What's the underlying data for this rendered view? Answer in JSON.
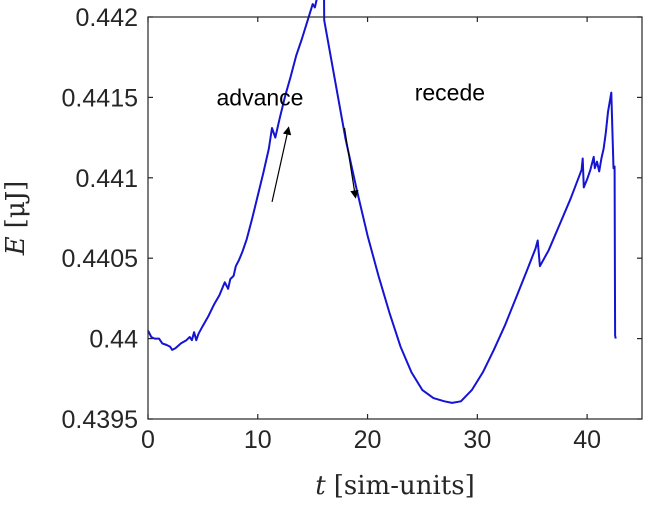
{
  "chart_data": {
    "type": "line",
    "title": "",
    "xlabel_var": "t",
    "xlabel_unit": "[sim-units]",
    "ylabel_var": "E",
    "ylabel_unit": "[μJ]",
    "xlim": [
      0,
      45
    ],
    "ylim": [
      0.4395,
      0.442
    ],
    "xticks": [
      0,
      10,
      20,
      30,
      40
    ],
    "xtick_labels": [
      "0",
      "10",
      "20",
      "30",
      "40"
    ],
    "yticks": [
      0.4395,
      0.44,
      0.4405,
      0.441,
      0.4415,
      0.442
    ],
    "ytick_labels": [
      "0.4395",
      "0.44",
      "0.4405",
      "0.441",
      "0.4415",
      "0.442"
    ],
    "grid": false,
    "line_color": "#1414d2",
    "series": [
      {
        "x": [
          0,
          0.3,
          0.6,
          1.0,
          1.3,
          1.7,
          2.0,
          2.2,
          2.5,
          3.0,
          3.5,
          3.8,
          4.0,
          4.2,
          4.4,
          4.6,
          5.0,
          5.5,
          6.0,
          6.5,
          7.0,
          7.3,
          7.5,
          7.8,
          8.0,
          8.3,
          8.6,
          9.0,
          9.5,
          10.0,
          10.5,
          11.0,
          11.3,
          11.6,
          12.0,
          12.5,
          13.0,
          13.5,
          14.0,
          14.5,
          15.0,
          15.2,
          15.4,
          15.6,
          15.75,
          15.85,
          16.0,
          16.05,
          17.0,
          18.0,
          19.0,
          20.0,
          21.0,
          22.0,
          23.0,
          24.0,
          25.0,
          26.0,
          27.0,
          27.7,
          28.5,
          29.5,
          30.5,
          31.5,
          32.5,
          33.5,
          34.5,
          35.3,
          35.5,
          35.7,
          36.5,
          37.5,
          38.5,
          39.5,
          39.6,
          39.7,
          40.0,
          40.3,
          40.6,
          40.7,
          40.9,
          41.1,
          41.3,
          41.5,
          41.7,
          41.9,
          42.2,
          42.4,
          42.5,
          42.55,
          42.6
        ],
        "y": [
          0.44005,
          0.44001,
          0.44,
          0.44,
          0.43997,
          0.43996,
          0.43995,
          0.43993,
          0.43994,
          0.43997,
          0.43999,
          0.44001,
          0.43999,
          0.44004,
          0.43999,
          0.44003,
          0.44008,
          0.44014,
          0.44021,
          0.44027,
          0.44035,
          0.44031,
          0.44037,
          0.44039,
          0.44045,
          0.44049,
          0.44054,
          0.44062,
          0.44075,
          0.44089,
          0.44103,
          0.44118,
          0.44131,
          0.44125,
          0.44137,
          0.44151,
          0.44163,
          0.44176,
          0.44186,
          0.44197,
          0.44208,
          0.44206,
          0.44212,
          0.44217,
          0.44225,
          0.44235,
          0.44253,
          0.44198,
          0.44162,
          0.44124,
          0.44093,
          0.44064,
          0.44039,
          0.44016,
          0.43995,
          0.43979,
          0.43968,
          0.43963,
          0.43961,
          0.4396,
          0.43961,
          0.43968,
          0.43979,
          0.43993,
          0.44008,
          0.44025,
          0.44042,
          0.44056,
          0.44061,
          0.44045,
          0.44055,
          0.44071,
          0.44087,
          0.44105,
          0.44112,
          0.44094,
          0.44099,
          0.44105,
          0.44113,
          0.44106,
          0.4411,
          0.44104,
          0.44112,
          0.44118,
          0.44128,
          0.44141,
          0.44153,
          0.44106,
          0.44107,
          0.44002,
          0.44
        ]
      }
    ],
    "annotations": [
      {
        "text": "advance",
        "x": 10.2,
        "y": 0.44145
      },
      {
        "text": "recede",
        "x": 27.5,
        "y": 0.44148
      }
    ],
    "arrows": [
      {
        "direction": "up",
        "from": [
          11.3,
          0.44085
        ],
        "to": [
          12.8,
          0.44131
        ]
      },
      {
        "direction": "down",
        "from": [
          17.9,
          0.44131
        ],
        "to": [
          18.9,
          0.44088
        ]
      }
    ]
  }
}
